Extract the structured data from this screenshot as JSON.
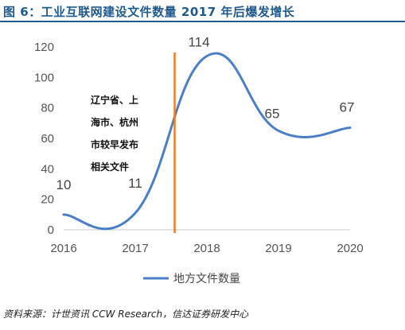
{
  "title": "图 6：工业互联网建设文件数量 2017 年后爆发增长",
  "source": "资料来源：计世资讯 CCW Research，信达证券研发中心",
  "annotation_lines": [
    "辽宁省、上",
    "海市、杭州",
    "市较早发布",
    "相关文件"
  ],
  "colors": {
    "line": "#4a7fc7",
    "marker": "#ef7d22",
    "title": "#1f5a8f",
    "axis": "#7a7a7a"
  },
  "chart_data": {
    "type": "line",
    "x": [
      2016,
      2017,
      2018,
      2019,
      2020
    ],
    "series": [
      {
        "name": "地方文件数量",
        "values": [
          10,
          11,
          114,
          65,
          67
        ]
      }
    ],
    "data_labels": [
      "10",
      "11",
      "114",
      "65",
      "67"
    ],
    "yticks": [
      0,
      20,
      40,
      60,
      80,
      100,
      120
    ],
    "ylim": [
      0,
      120
    ],
    "xlim": [
      2016,
      2020
    ],
    "vertical_marker_x": 2017.55,
    "legend": "bottom-center",
    "grid": false
  }
}
